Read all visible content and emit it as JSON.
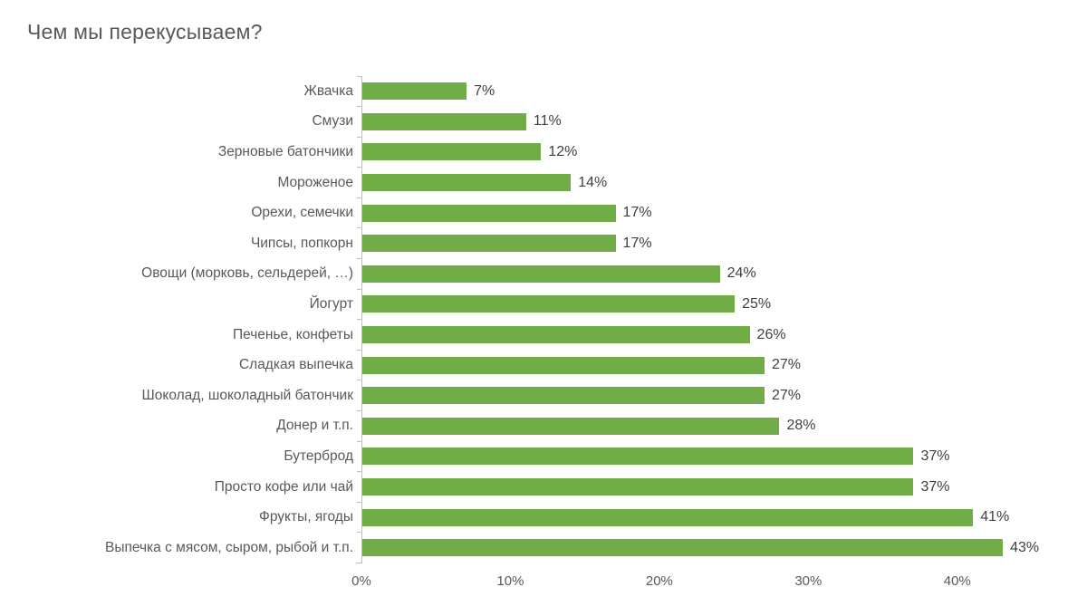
{
  "title": "Чем мы перекусываем?",
  "chart_data": {
    "type": "bar",
    "orientation": "horizontal",
    "title": "Чем мы перекусываем?",
    "categories": [
      "Жвачка",
      "Смузи",
      "Зерновые батончики",
      "Мороженое",
      "Орехи, семечки",
      "Чипсы, попкорн",
      "Овощи (морковь, сельдерей, …)",
      "Йогурт",
      "Печенье, конфеты",
      "Сладкая выпечка",
      "Шоколад, шоколадный батончик",
      "Донер и т.п.",
      "Бутерброд",
      "Просто кофе или чай",
      "Фрукты, ягоды",
      "Выпечка с мясом, сыром, рыбой и т.п."
    ],
    "values": [
      7,
      11,
      12,
      14,
      17,
      17,
      24,
      25,
      26,
      27,
      27,
      28,
      37,
      37,
      41,
      43
    ],
    "value_labels": [
      "7%",
      "11%",
      "12%",
      "14%",
      "17%",
      "17%",
      "24%",
      "25%",
      "26%",
      "27%",
      "27%",
      "28%",
      "37%",
      "37%",
      "41%",
      "43%"
    ],
    "x_ticks": [
      "0%",
      "10%",
      "20%",
      "30%",
      "40%"
    ],
    "x_tick_values": [
      0,
      10,
      20,
      30,
      40
    ],
    "xlim": [
      0,
      45
    ],
    "grid": false,
    "legend": false,
    "bar_color": "#70AD47",
    "axis_color": "#BFBFBF",
    "label_color": "#595959",
    "value_label_color": "#404040"
  }
}
